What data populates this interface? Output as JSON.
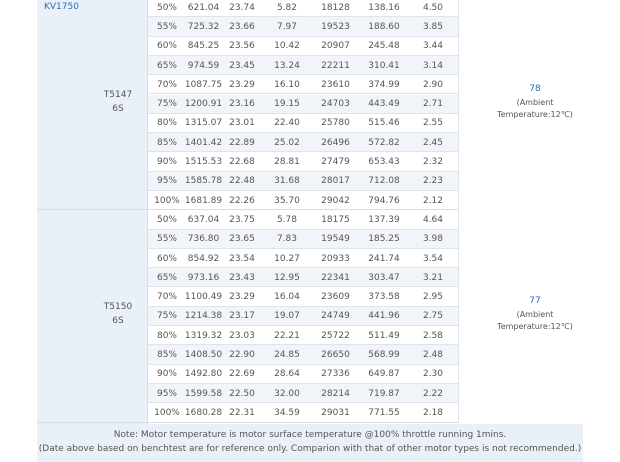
{
  "model": "KV1750",
  "groups": [
    {
      "prop": "T5147",
      "cells": "6S",
      "temp": "78",
      "ambient": "(Ambient Temperature:12℃)",
      "rows": [
        [
          "50%",
          "621.04",
          "23.74",
          "5.82",
          "18128",
          "138.16",
          "4.50"
        ],
        [
          "55%",
          "725.32",
          "23.66",
          "7.97",
          "19523",
          "188.60",
          "3.85"
        ],
        [
          "60%",
          "845.25",
          "23.56",
          "10.42",
          "20907",
          "245.48",
          "3.44"
        ],
        [
          "65%",
          "974.59",
          "23.45",
          "13.24",
          "22211",
          "310.41",
          "3.14"
        ],
        [
          "70%",
          "1087.75",
          "23.29",
          "16.10",
          "23610",
          "374.99",
          "2.90"
        ],
        [
          "75%",
          "1200.91",
          "23.16",
          "19.15",
          "24703",
          "443.49",
          "2.71"
        ],
        [
          "80%",
          "1315.07",
          "23.01",
          "22.40",
          "25780",
          "515.46",
          "2.55"
        ],
        [
          "85%",
          "1401.42",
          "22.89",
          "25.02",
          "26496",
          "572.82",
          "2.45"
        ],
        [
          "90%",
          "1515.53",
          "22.68",
          "28.81",
          "27479",
          "653.43",
          "2.32"
        ],
        [
          "95%",
          "1585.78",
          "22.48",
          "31.68",
          "28017",
          "712.08",
          "2.23"
        ],
        [
          "100%",
          "1681.89",
          "22.26",
          "35.70",
          "29042",
          "794.76",
          "2.12"
        ]
      ]
    },
    {
      "prop": "T5150",
      "cells": "6S",
      "temp": "77",
      "ambient": "(Ambient Temperature:12℃)",
      "rows": [
        [
          "50%",
          "637.04",
          "23.75",
          "5.78",
          "18175",
          "137.39",
          "4.64"
        ],
        [
          "55%",
          "736.80",
          "23.65",
          "7.83",
          "19549",
          "185.25",
          "3.98"
        ],
        [
          "60%",
          "854.92",
          "23.54",
          "10.27",
          "20933",
          "241.74",
          "3.54"
        ],
        [
          "65%",
          "973.16",
          "23.43",
          "12.95",
          "22341",
          "303.47",
          "3.21"
        ],
        [
          "70%",
          "1100.49",
          "23.29",
          "16.04",
          "23609",
          "373.58",
          "2.95"
        ],
        [
          "75%",
          "1214.38",
          "23.17",
          "19.07",
          "24749",
          "441.96",
          "2.75"
        ],
        [
          "80%",
          "1319.32",
          "23.03",
          "22.21",
          "25722",
          "511.49",
          "2.58"
        ],
        [
          "85%",
          "1408.50",
          "22.90",
          "24.85",
          "26650",
          "568.99",
          "2.48"
        ],
        [
          "90%",
          "1492.80",
          "22.69",
          "28.64",
          "27336",
          "649.87",
          "2.30"
        ],
        [
          "95%",
          "1599.58",
          "22.50",
          "32.00",
          "28214",
          "719.87",
          "2.22"
        ],
        [
          "100%",
          "1680.28",
          "22.31",
          "34.59",
          "29031",
          "771.55",
          "2.18"
        ]
      ]
    }
  ],
  "notes": [
    "Note: Motor temperature is motor surface temperature @100% throttle running 1mins.",
    "(Date above based on benchtest are for reference only. Comparion with that of other motor types is not recommended.)"
  ]
}
